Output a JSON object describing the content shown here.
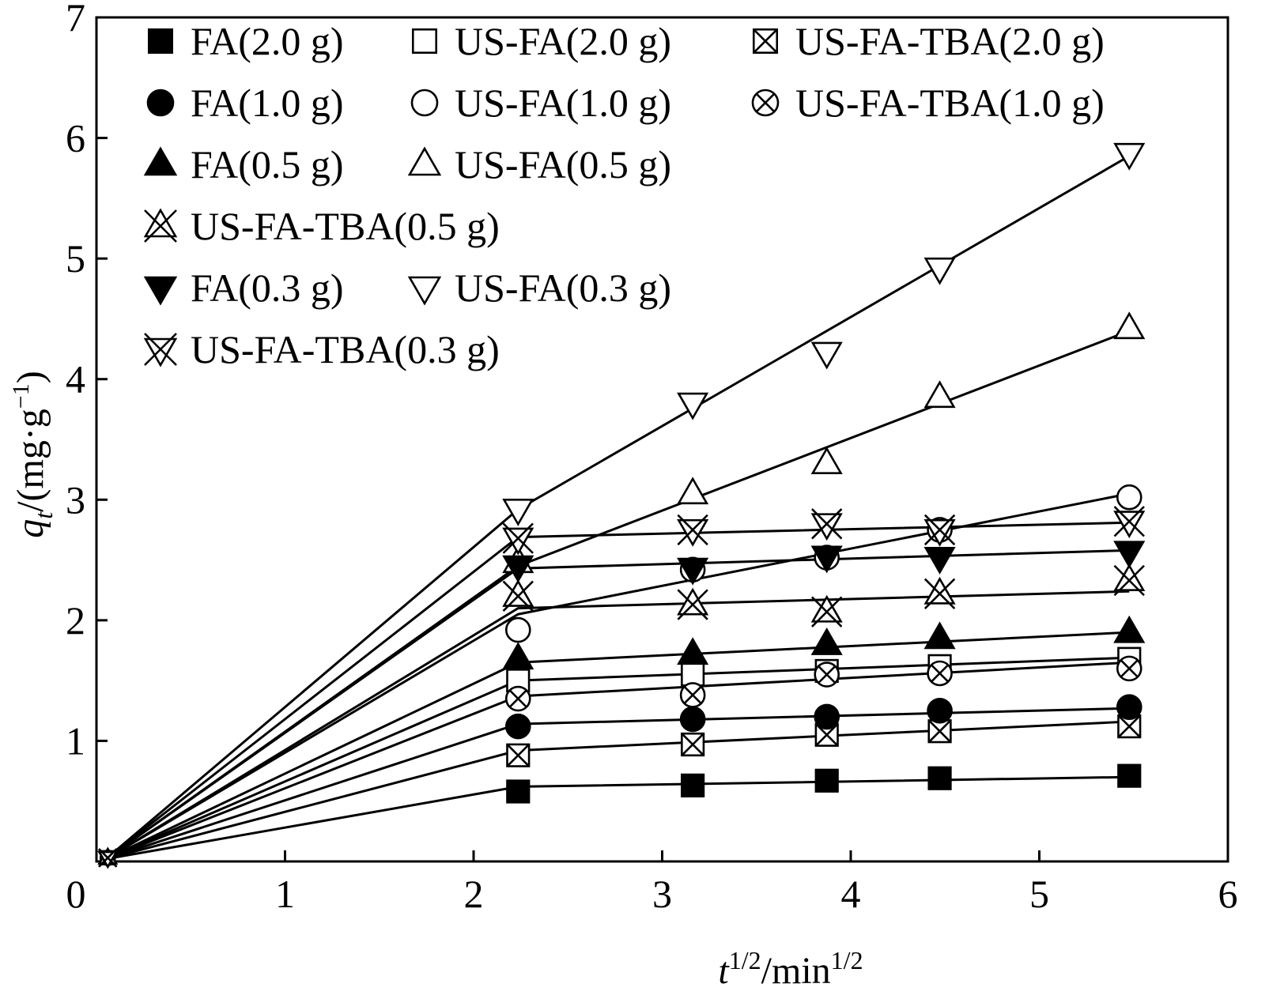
{
  "chart_data": {
    "type": "scatter",
    "xlabel": {
      "base": "t",
      "base_sup": "1/2",
      "unit": "/min",
      "unit_sup": "1/2"
    },
    "ylabel": {
      "base": "q",
      "base_sub": "t",
      "unit": "/(mg·g",
      "unit_sup": "−1",
      "close": ")"
    },
    "xlim": [
      0,
      6
    ],
    "ylim": [
      0,
      7
    ],
    "xticks": [
      0,
      1,
      2,
      3,
      4,
      5,
      6
    ],
    "yticks": [
      1,
      2,
      3,
      4,
      5,
      6,
      7
    ],
    "grid": false,
    "legend_position": "top-left",
    "lines": "fitted lines join origin to first point, then linear trend through remaining points",
    "x": [
      2.236,
      3.162,
      3.873,
      4.472,
      5.477
    ],
    "series": [
      {
        "name": "FA(2.0 g)",
        "marker": "square-filled",
        "values": [
          0.58,
          0.63,
          0.67,
          0.69,
          0.71
        ],
        "fit": [
          0.62,
          0.7
        ]
      },
      {
        "name": "US-FA(2.0 g)",
        "marker": "square-open",
        "values": [
          1.5,
          1.55,
          1.58,
          1.62,
          1.68
        ],
        "fit": [
          1.5,
          1.69
        ]
      },
      {
        "name": "US-FA-TBA(2.0 g)",
        "marker": "square-x",
        "values": [
          0.88,
          0.97,
          1.05,
          1.08,
          1.12
        ],
        "fit": [
          0.92,
          1.16
        ]
      },
      {
        "name": "FA(1.0 g)",
        "marker": "circle-filled",
        "values": [
          1.12,
          1.18,
          1.2,
          1.25,
          1.28
        ],
        "fit": [
          1.14,
          1.27
        ]
      },
      {
        "name": "US-FA(1.0 g)",
        "marker": "circle-open",
        "values": [
          1.92,
          2.42,
          2.52,
          2.75,
          3.02
        ],
        "fit": [
          2.05,
          3.05
        ]
      },
      {
        "name": "US-FA-TBA(1.0 g)",
        "marker": "circle-x",
        "values": [
          1.35,
          1.38,
          1.55,
          1.56,
          1.6
        ],
        "fit": [
          1.37,
          1.65
        ]
      },
      {
        "name": "FA(0.5 g)",
        "marker": "triangle-up-filled",
        "values": [
          1.68,
          1.72,
          1.8,
          1.85,
          1.9
        ],
        "fit": [
          1.65,
          1.9
        ]
      },
      {
        "name": "US-FA(0.5 g)",
        "marker": "triangle-up-open",
        "values": [
          2.48,
          3.05,
          3.3,
          3.85,
          4.42
        ],
        "fit": [
          2.45,
          4.4
        ]
      },
      {
        "name": "US-FA-TBA(0.5 g)",
        "marker": "triangle-x",
        "values": [
          2.2,
          2.13,
          2.07,
          2.22,
          2.33
        ],
        "fit": [
          2.1,
          2.24
        ]
      },
      {
        "name": "FA(0.3 g)",
        "marker": "triangle-down-filled",
        "values": [
          2.45,
          2.43,
          2.53,
          2.52,
          2.57
        ],
        "fit": [
          2.43,
          2.58
        ]
      },
      {
        "name": "US-FA(0.3 g)",
        "marker": "triangle-down-open",
        "values": [
          2.92,
          3.8,
          4.22,
          4.92,
          5.87
        ],
        "fit": [
          2.92,
          5.85
        ]
      },
      {
        "name": "US-FA-TBA(0.3 g)",
        "marker": "triangle-down-x",
        "values": [
          2.68,
          2.75,
          2.8,
          2.75,
          2.82
        ],
        "fit": [
          2.69,
          2.81
        ]
      }
    ],
    "legend_rows": [
      [
        "FA(2.0 g)",
        "US-FA(2.0 g)",
        "US-FA-TBA(2.0 g)"
      ],
      [
        "FA(1.0 g)",
        "US-FA(1.0 g)",
        "US-FA-TBA(1.0 g)"
      ],
      [
        "FA(0.5 g)",
        "US-FA(0.5 g)"
      ],
      [
        "US-FA-TBA(0.5 g)"
      ],
      [
        "FA(0.3 g)",
        "US-FA(0.3 g)"
      ],
      [
        "US-FA-TBA(0.3 g)"
      ]
    ]
  }
}
